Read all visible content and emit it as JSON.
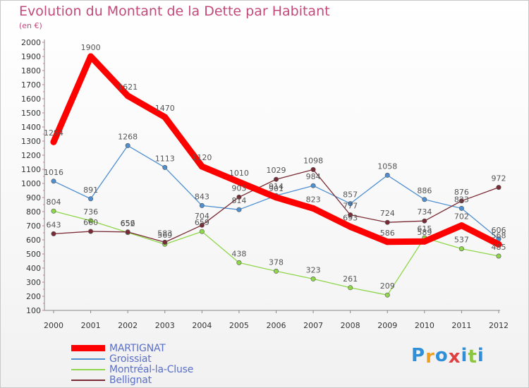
{
  "chart_data": {
    "type": "line",
    "title": "Evolution du Montant de la Dette par Habitant",
    "subtitle": "(en €)",
    "x": [
      "2000",
      "2001",
      "2002",
      "2003",
      "2004",
      "2005",
      "2006",
      "2007",
      "2008",
      "2009",
      "2010",
      "2011",
      "2012"
    ],
    "ylim": [
      100,
      2000
    ],
    "yticks": [
      100,
      200,
      300,
      400,
      500,
      600,
      700,
      800,
      900,
      1000,
      1100,
      1200,
      1300,
      1400,
      1500,
      1600,
      1700,
      1800,
      1900,
      2000
    ],
    "grid": false,
    "legend_position": "bottom-left",
    "series": [
      {
        "name": "MARTIGNAT",
        "color": "#ff0000",
        "values": [
          1294,
          1900,
          1621,
          1470,
          1120,
          1010,
          901,
          823,
          693,
          586,
          589,
          702,
          568
        ]
      },
      {
        "name": "Groissiat",
        "color": "#4f8fd0",
        "values": [
          1016,
          891,
          1268,
          1113,
          843,
          814,
          914,
          984,
          857,
          1058,
          886,
          823,
          606
        ]
      },
      {
        "name": "Montréal-la-Cluse",
        "color": "#8fd64a",
        "values": [
          804,
          736,
          652,
          569,
          659,
          438,
          378,
          323,
          261,
          209,
          615,
          537,
          485
        ]
      },
      {
        "name": "Bellignat",
        "color": "#7a2a34",
        "values": [
          643,
          660,
          656,
          583,
          704,
          903,
          1029,
          1098,
          777,
          724,
          734,
          876,
          972
        ]
      }
    ]
  },
  "brand": {
    "text": "Proxiti",
    "letters": [
      "P",
      "r",
      "o",
      "x",
      "i",
      "t",
      "i"
    ],
    "colors": [
      "#2f8fd8",
      "#f0a020",
      "#2f8fd8",
      "#e04040",
      "#2f8fd8",
      "#8cc63f",
      "#2f8fd8"
    ]
  }
}
